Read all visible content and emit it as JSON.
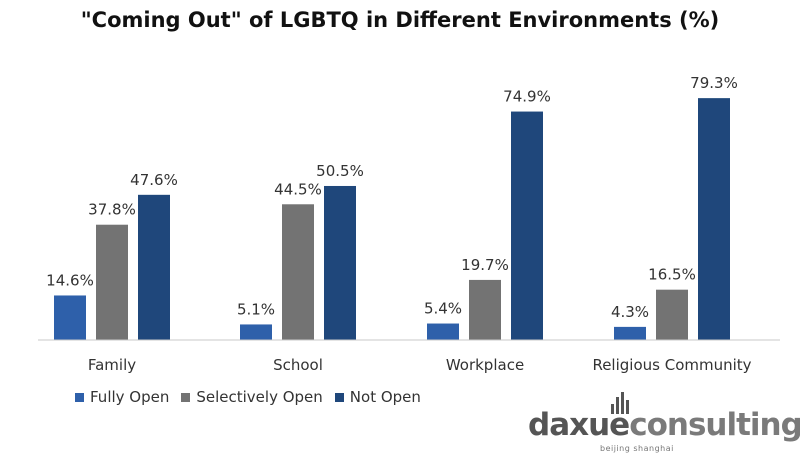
{
  "chart_data": {
    "type": "bar",
    "title": "\"Coming Out\" of LGBTQ in Different Environments (%)",
    "categories": [
      "Family",
      "School",
      "Workplace",
      "Religious Community"
    ],
    "series": [
      {
        "name": "Fully Open",
        "values": [
          14.6,
          5.1,
          5.4,
          4.3
        ],
        "color": "#2e60aa"
      },
      {
        "name": "Selectively Open",
        "values": [
          37.8,
          44.5,
          19.7,
          16.5
        ],
        "color": "#737373"
      },
      {
        "name": "Not Open",
        "values": [
          47.6,
          50.5,
          74.9,
          79.3
        ],
        "color": "#1f477b"
      }
    ],
    "value_labels": [
      [
        "14.6%",
        "5.1%",
        "5.4%",
        "4.3%"
      ],
      [
        "37.8%",
        "44.5%",
        "19.7%",
        "16.5%"
      ],
      [
        "47.6%",
        "50.5%",
        "74.9%",
        "79.3%"
      ]
    ],
    "ylim": [
      0,
      100
    ],
    "grid": false,
    "legend_position": "bottom-left"
  },
  "brand": {
    "name_part1": "daxue",
    "name_part2": "consulting",
    "tagline": "beijing shanghai"
  }
}
